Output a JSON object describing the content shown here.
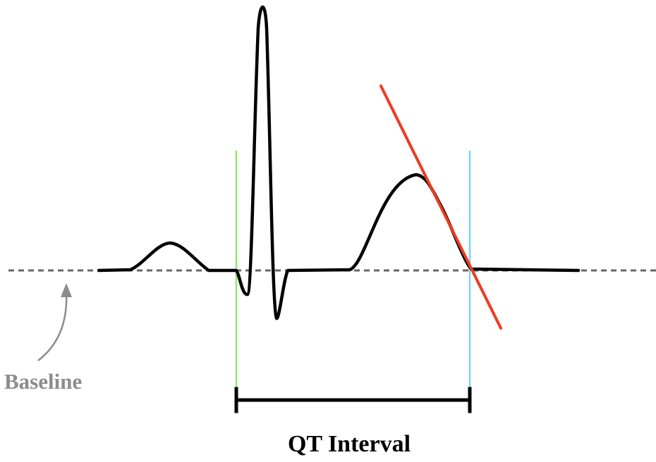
{
  "labels": {
    "baseline": "Baseline",
    "interval": "QT Interval"
  },
  "colors": {
    "waveform": "#000000",
    "baseline": "#666666",
    "baseline_label": "#8c8c8c",
    "q_onset_marker": "#8fe86e",
    "t_end_marker": "#7fd3ee",
    "tangent": "#f03a1e",
    "interval_bracket": "#000000"
  }
}
